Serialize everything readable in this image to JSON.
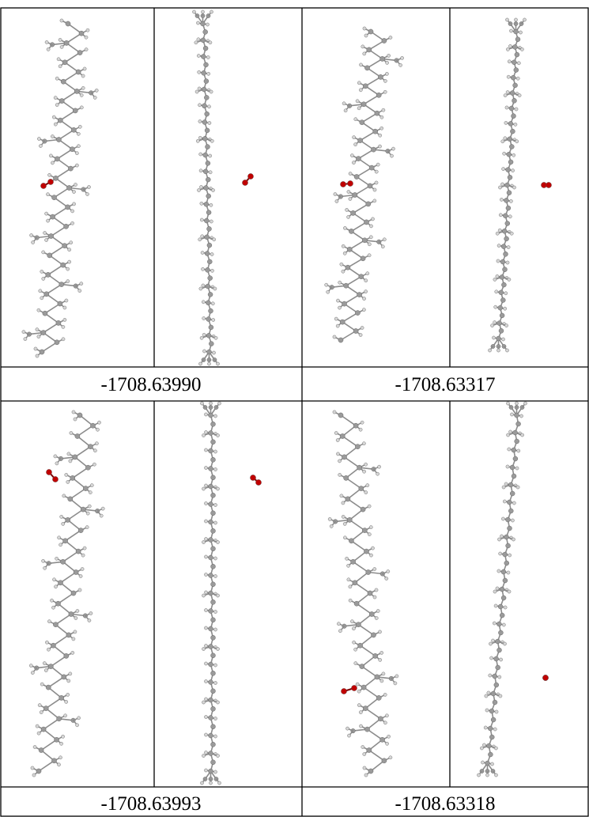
{
  "table": {
    "rows": [
      {
        "panels": [
          {
            "conformer": "zigzag",
            "o2_side": "left"
          },
          {
            "conformer": "straight",
            "o2_side": "right"
          },
          {
            "conformer": "zigzag",
            "o2_side": "left"
          },
          {
            "conformer": "straight",
            "o2_side": "right"
          }
        ],
        "energies": [
          "-1708.63990",
          "-1708.63317"
        ]
      },
      {
        "panels": [
          {
            "conformer": "zigzag",
            "o2_side": "left"
          },
          {
            "conformer": "straight",
            "o2_side": "right"
          },
          {
            "conformer": "zigzag",
            "o2_side": "left"
          },
          {
            "conformer": "straight",
            "o2_side": "right"
          }
        ],
        "energies": [
          "-1708.63993",
          "-1708.63318"
        ]
      }
    ]
  },
  "colors": {
    "carbon": "#9a9a9a",
    "hydrogen": "#d6d6d6",
    "oxygen": "#c00000",
    "border": "#000000"
  }
}
